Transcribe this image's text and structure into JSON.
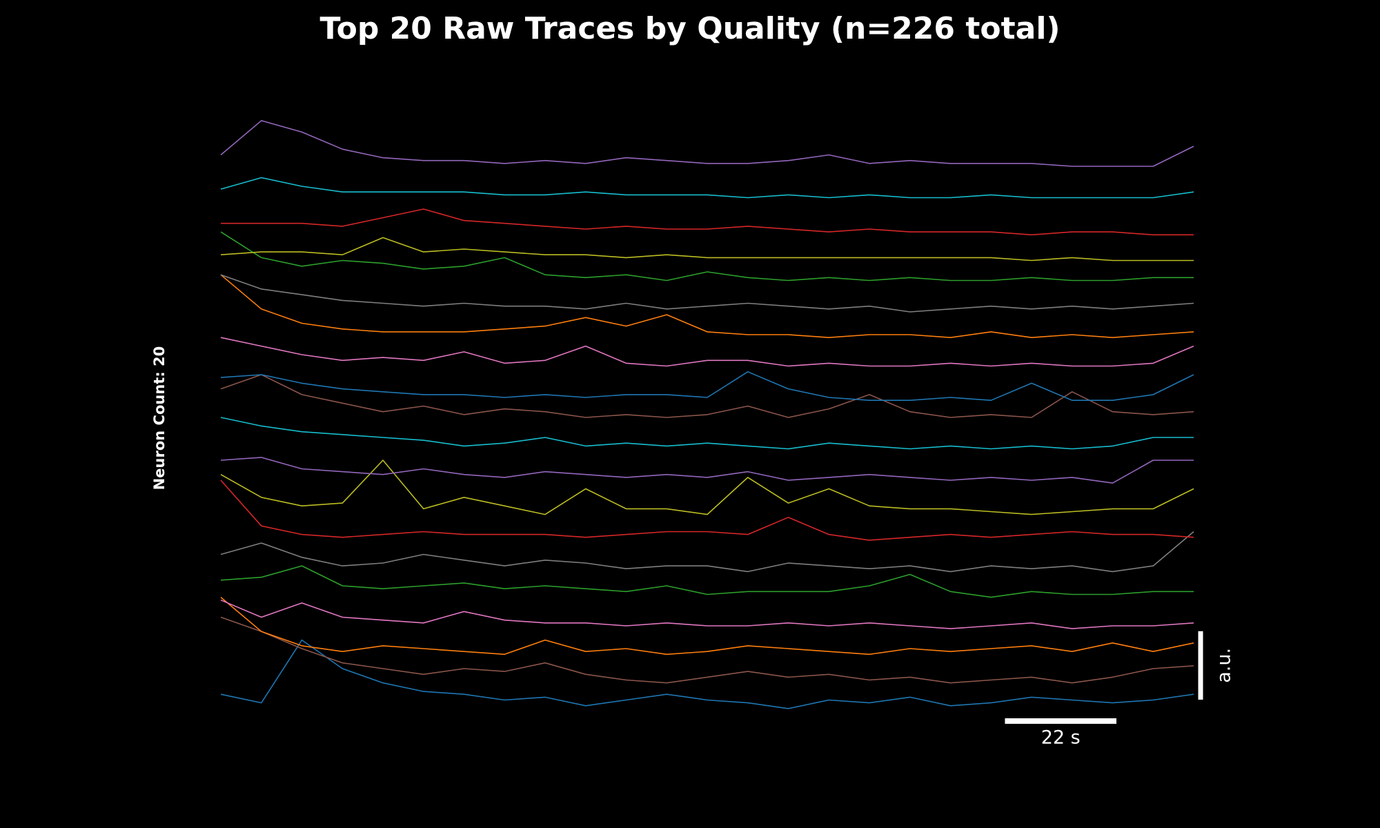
{
  "chart_data": {
    "type": "line",
    "title": "Top 20 Raw Traces by Quality (n=226 total)",
    "ylabel": "Neuron Count: 20",
    "x": [
      0,
      8,
      16,
      24,
      32,
      40,
      48,
      56,
      64,
      72,
      80,
      88,
      96,
      104,
      112,
      120,
      128,
      136,
      144,
      152,
      160,
      168,
      176,
      184,
      192
    ],
    "xlim": [
      0,
      192
    ],
    "ylim": [
      -1,
      21
    ],
    "scalebar_x": {
      "value": 22,
      "label": "22 s"
    },
    "scalebar_y": {
      "value": 2.4,
      "label": "a.u."
    },
    "series": [
      {
        "color": "#1f77b4",
        "values": [
          0.3,
          0,
          2.2,
          1.2,
          0.7,
          0.4,
          0.3,
          0.1,
          0.2,
          -0.1,
          0.1,
          0.3,
          0.1,
          0,
          -0.2,
          0.1,
          0,
          0.2,
          -0.1,
          0,
          0.2,
          0.1,
          0,
          0.1,
          0.3
        ]
      },
      {
        "color": "#8c564b",
        "values": [
          3.0,
          2.5,
          1.9,
          1.4,
          1.2,
          1,
          1.2,
          1.1,
          1.4,
          1.0,
          0.8,
          0.7,
          0.9,
          1.1,
          0.9,
          1.0,
          0.8,
          0.9,
          0.7,
          0.8,
          0.9,
          0.7,
          0.9,
          1.2,
          1.3
        ]
      },
      {
        "color": "#ff7f0e",
        "values": [
          3.7,
          2.5,
          2.0,
          1.8,
          2.0,
          1.9,
          1.8,
          1.7,
          2.2,
          1.8,
          1.9,
          1.7,
          1.8,
          2.0,
          1.9,
          1.8,
          1.7,
          1.9,
          1.8,
          1.9,
          2.0,
          1.8,
          2.1,
          1.8,
          2.1
        ]
      },
      {
        "color": "#e377c2",
        "values": [
          3.6,
          3.0,
          3.5,
          3.0,
          2.9,
          2.8,
          3.2,
          2.9,
          2.8,
          2.8,
          2.7,
          2.8,
          2.7,
          2.7,
          2.8,
          2.7,
          2.8,
          2.7,
          2.6,
          2.7,
          2.8,
          2.6,
          2.7,
          2.7,
          2.8
        ]
      },
      {
        "color": "#2ca02c",
        "values": [
          4.3,
          4.4,
          4.8,
          4.1,
          4.0,
          4.1,
          4.2,
          4.0,
          4.1,
          4.0,
          3.9,
          4.1,
          3.8,
          3.9,
          3.9,
          3.9,
          4.1,
          4.5,
          3.9,
          3.7,
          3.9,
          3.8,
          3.8,
          3.9,
          3.9
        ]
      },
      {
        "color": "#7f7f7f",
        "values": [
          5.2,
          5.6,
          5.1,
          4.8,
          4.9,
          5.2,
          5.0,
          4.8,
          5.0,
          4.9,
          4.7,
          4.8,
          4.8,
          4.6,
          4.9,
          4.8,
          4.7,
          4.8,
          4.6,
          4.8,
          4.7,
          4.8,
          4.6,
          4.8,
          6.0
        ]
      },
      {
        "color": "#d62728",
        "values": [
          7.8,
          6.2,
          5.9,
          5.8,
          5.9,
          6.0,
          5.9,
          5.9,
          5.9,
          5.8,
          5.9,
          6.0,
          6.0,
          5.9,
          6.5,
          5.9,
          5.7,
          5.8,
          5.9,
          5.8,
          5.9,
          6.0,
          5.9,
          5.9,
          5.8
        ]
      },
      {
        "color": "#bcbd22",
        "values": [
          8.0,
          7.2,
          6.9,
          7.0,
          8.5,
          6.8,
          7.2,
          6.9,
          6.6,
          7.5,
          6.8,
          6.8,
          6.6,
          7.9,
          7.0,
          7.5,
          6.9,
          6.8,
          6.8,
          6.7,
          6.6,
          6.7,
          6.8,
          6.8,
          7.5
        ]
      },
      {
        "color": "#9467bd",
        "values": [
          8.5,
          8.6,
          8.2,
          8.1,
          8.0,
          8.2,
          8.0,
          7.9,
          8.1,
          8.0,
          7.9,
          8.0,
          7.9,
          8.1,
          7.8,
          7.9,
          8.0,
          7.9,
          7.8,
          7.9,
          7.8,
          7.9,
          7.7,
          8.5,
          8.5
        ]
      },
      {
        "color": "#17becf",
        "values": [
          10.0,
          9.7,
          9.5,
          9.4,
          9.3,
          9.2,
          9.0,
          9.1,
          9.3,
          9.0,
          9.1,
          9.0,
          9.1,
          9.0,
          8.9,
          9.1,
          9.0,
          8.9,
          9.0,
          8.9,
          9.0,
          8.9,
          9.0,
          9.3,
          9.3
        ]
      },
      {
        "color": "#8c564b",
        "values": [
          11.0,
          11.5,
          10.8,
          10.5,
          10.2,
          10.4,
          10.1,
          10.3,
          10.2,
          10.0,
          10.1,
          10.0,
          10.1,
          10.4,
          10.0,
          10.3,
          10.8,
          10.2,
          10.0,
          10.1,
          10.0,
          10.9,
          10.2,
          10.1,
          10.2
        ]
      },
      {
        "color": "#1f77b4",
        "values": [
          11.4,
          11.5,
          11.2,
          11.0,
          10.9,
          10.8,
          10.8,
          10.7,
          10.8,
          10.7,
          10.8,
          10.8,
          10.7,
          11.6,
          11.0,
          10.7,
          10.6,
          10.6,
          10.7,
          10.6,
          11.2,
          10.6,
          10.6,
          10.8,
          11.5
        ]
      },
      {
        "color": "#e377c2",
        "values": [
          12.8,
          12.5,
          12.2,
          12.0,
          12.1,
          12.0,
          12.3,
          11.9,
          12.0,
          12.5,
          11.9,
          11.8,
          12.0,
          12.0,
          11.8,
          11.9,
          11.8,
          11.8,
          11.9,
          11.8,
          11.9,
          11.8,
          11.8,
          11.9,
          12.5
        ]
      },
      {
        "color": "#ff7f0e",
        "values": [
          15.0,
          13.8,
          13.3,
          13.1,
          13.0,
          13.0,
          13.0,
          13.1,
          13.2,
          13.5,
          13.2,
          13.6,
          13.0,
          12.9,
          12.9,
          12.8,
          12.9,
          12.9,
          12.8,
          13.0,
          12.8,
          12.9,
          12.8,
          12.9,
          13.0
        ]
      },
      {
        "color": "#7f7f7f",
        "values": [
          15.0,
          14.5,
          14.3,
          14.1,
          14.0,
          13.9,
          14.0,
          13.9,
          13.9,
          13.8,
          14.0,
          13.8,
          13.9,
          14.0,
          13.9,
          13.8,
          13.9,
          13.7,
          13.8,
          13.9,
          13.8,
          13.9,
          13.8,
          13.9,
          14.0
        ]
      },
      {
        "color": "#2ca02c",
        "values": [
          16.5,
          15.6,
          15.3,
          15.5,
          15.4,
          15.2,
          15.3,
          15.6,
          15.0,
          14.9,
          15.0,
          14.8,
          15.1,
          14.9,
          14.8,
          14.9,
          14.8,
          14.9,
          14.8,
          14.8,
          14.9,
          14.8,
          14.8,
          14.9,
          14.9
        ]
      },
      {
        "color": "#bcbd22",
        "values": [
          15.7,
          15.8,
          15.8,
          15.7,
          16.3,
          15.8,
          15.9,
          15.8,
          15.7,
          15.7,
          15.6,
          15.7,
          15.6,
          15.6,
          15.6,
          15.6,
          15.6,
          15.6,
          15.6,
          15.6,
          15.5,
          15.6,
          15.5,
          15.5,
          15.5
        ]
      },
      {
        "color": "#d62728",
        "values": [
          16.8,
          16.8,
          16.8,
          16.7,
          17.0,
          17.3,
          16.9,
          16.8,
          16.7,
          16.6,
          16.7,
          16.6,
          16.6,
          16.7,
          16.6,
          16.5,
          16.6,
          16.5,
          16.5,
          16.5,
          16.4,
          16.5,
          16.5,
          16.4,
          16.4
        ]
      },
      {
        "color": "#17becf",
        "values": [
          18.0,
          18.4,
          18.1,
          17.9,
          17.9,
          17.9,
          17.9,
          17.8,
          17.8,
          17.9,
          17.8,
          17.8,
          17.8,
          17.7,
          17.8,
          17.7,
          17.8,
          17.7,
          17.7,
          17.8,
          17.7,
          17.7,
          17.7,
          17.7,
          17.9
        ]
      },
      {
        "color": "#9467bd",
        "values": [
          19.2,
          20.4,
          20.0,
          19.4,
          19.1,
          19.0,
          19.0,
          18.9,
          19.0,
          18.9,
          19.1,
          19.0,
          18.9,
          18.9,
          19.0,
          19.2,
          18.9,
          19.0,
          18.9,
          18.9,
          18.9,
          18.8,
          18.8,
          18.8,
          19.5
        ]
      }
    ]
  }
}
